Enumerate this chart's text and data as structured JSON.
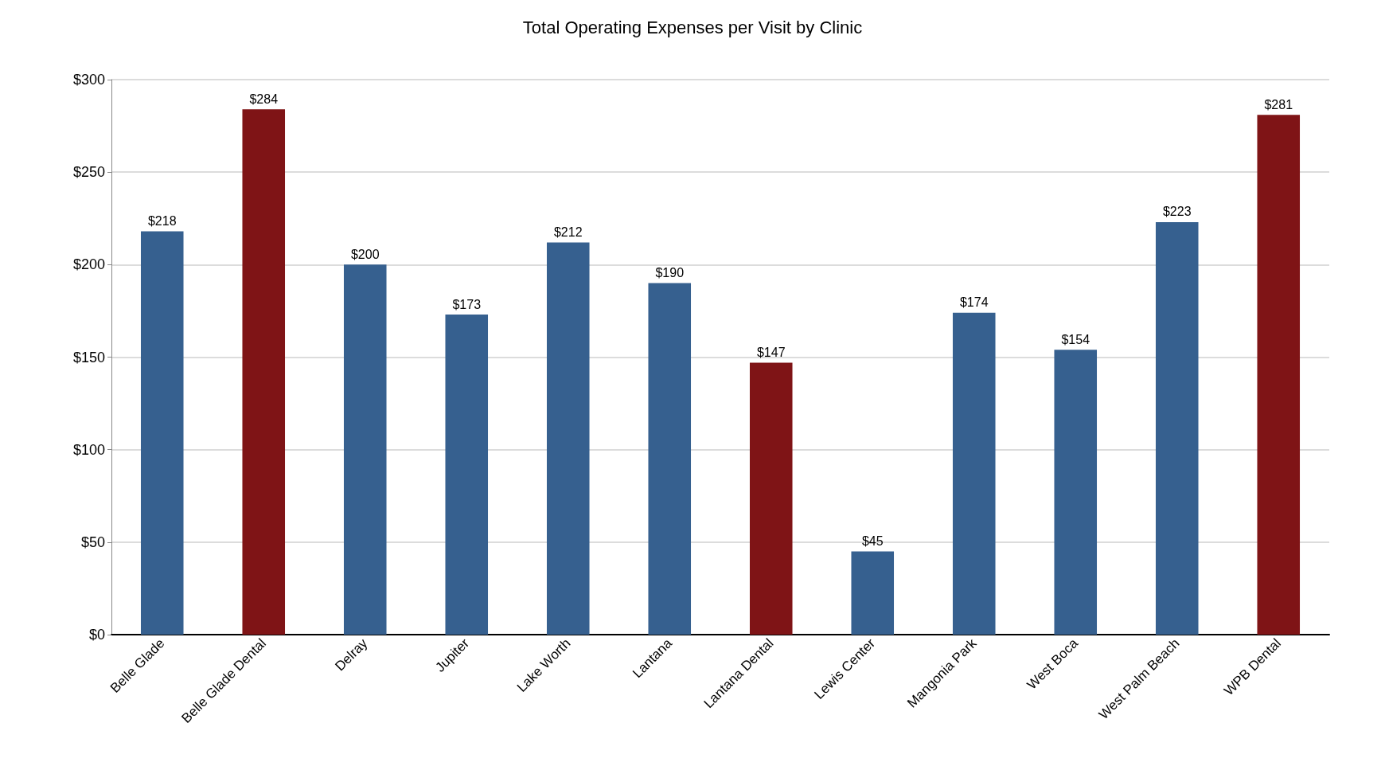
{
  "chart_data": {
    "type": "bar",
    "title": "Total Operating Expenses per Visit by Clinic",
    "categories": [
      "Belle Glade",
      "Belle Glade Dental",
      "Delray",
      "Jupiter",
      "Lake Worth",
      "Lantana",
      "Lantana Dental",
      "Lewis Center",
      "Mangonia Park",
      "West Boca",
      "West Palm Beach",
      "WPB Dental"
    ],
    "values": [
      218,
      284,
      200,
      173,
      212,
      190,
      147,
      45,
      174,
      154,
      223,
      281
    ],
    "colors": [
      "#36608f",
      "#7f1416",
      "#36608f",
      "#36608f",
      "#36608f",
      "#36608f",
      "#7f1416",
      "#36608f",
      "#36608f",
      "#36608f",
      "#36608f",
      "#7f1416"
    ],
    "value_labels": [
      "$218",
      "$284",
      "$200",
      "$173",
      "$212",
      "$190",
      "$147",
      "$45",
      "$174",
      "$154",
      "$223",
      "$281"
    ],
    "ylim": [
      0,
      300
    ],
    "yticks": [
      {
        "value": 0,
        "label": "$0"
      },
      {
        "value": 50,
        "label": "$50"
      },
      {
        "value": 100,
        "label": "$100"
      },
      {
        "value": 150,
        "label": "$150"
      },
      {
        "value": 200,
        "label": "$200"
      },
      {
        "value": 250,
        "label": "$250"
      },
      {
        "value": 300,
        "label": "$300"
      }
    ],
    "grid": "y"
  }
}
